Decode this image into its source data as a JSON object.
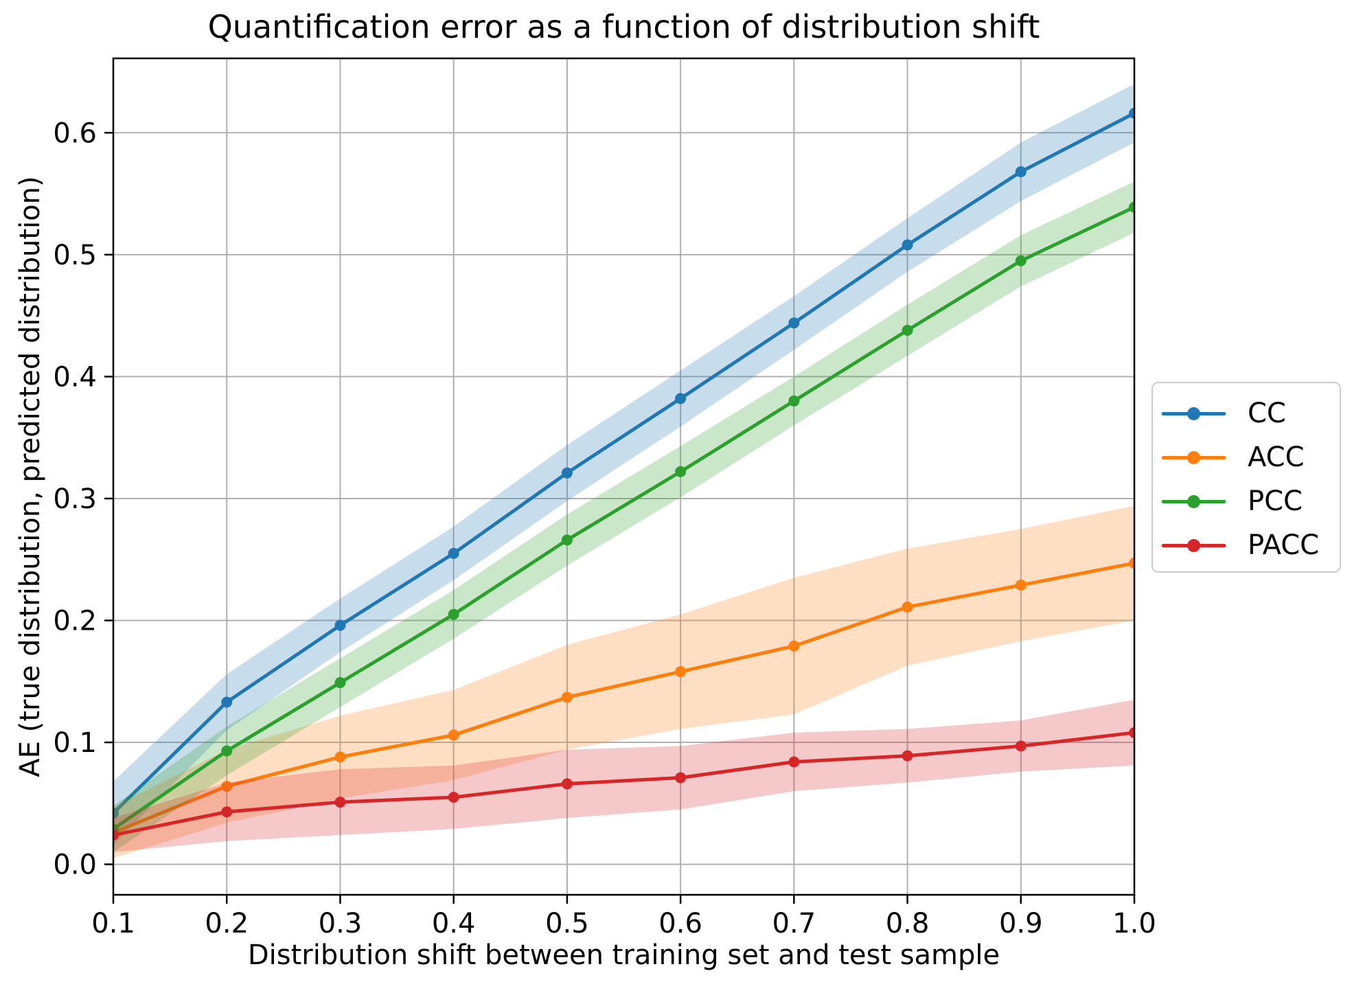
{
  "chart_data": {
    "type": "line",
    "title": "Quantification error as a function of distribution shift",
    "xlabel": "Distribution shift between training set and test sample",
    "ylabel": "AE (true distribution, predicted distribution)",
    "x": [
      0.1,
      0.2,
      0.3,
      0.4,
      0.5,
      0.6,
      0.7,
      0.8,
      0.9,
      1.0
    ],
    "xlim": [
      0.1,
      1.0
    ],
    "ylim": [
      -0.025,
      0.661
    ],
    "xticks": [
      0.1,
      0.2,
      0.3,
      0.4,
      0.5,
      0.6,
      0.7,
      0.8,
      0.9,
      1.0
    ],
    "yticks": [
      0.0,
      0.1,
      0.2,
      0.3,
      0.4,
      0.5,
      0.6
    ],
    "xtick_labels": [
      "0.1",
      "0.2",
      "0.3",
      "0.4",
      "0.5",
      "0.6",
      "0.7",
      "0.8",
      "0.9",
      "1.0"
    ],
    "ytick_labels": [
      "0.0",
      "0.1",
      "0.2",
      "0.3",
      "0.4",
      "0.5",
      "0.6"
    ],
    "grid": true,
    "grid_color": "#b0b0b0",
    "spine_color": "#000000",
    "background": "#ffffff",
    "band_alpha": 0.25,
    "legend_position": "outside-right",
    "legend_border_color": "#cccccc",
    "series": [
      {
        "name": "CC",
        "color": "#1f77b4",
        "values": [
          0.042,
          0.133,
          0.196,
          0.255,
          0.321,
          0.382,
          0.444,
          0.508,
          0.568,
          0.616
        ],
        "band_halfwidth": [
          0.026,
          0.023,
          0.022,
          0.022,
          0.023,
          0.023,
          0.022,
          0.022,
          0.024,
          0.024
        ]
      },
      {
        "name": "ACC",
        "color": "#ff7f0e",
        "values": [
          0.026,
          0.064,
          0.088,
          0.106,
          0.137,
          0.158,
          0.179,
          0.211,
          0.229,
          0.247
        ],
        "band_halfwidth": [
          0.021,
          0.03,
          0.034,
          0.037,
          0.043,
          0.047,
          0.056,
          0.048,
          0.046,
          0.047
        ]
      },
      {
        "name": "PCC",
        "color": "#2ca02c",
        "values": [
          0.029,
          0.093,
          0.149,
          0.205,
          0.266,
          0.322,
          0.38,
          0.438,
          0.495,
          0.539
        ],
        "band_halfwidth": [
          0.019,
          0.02,
          0.02,
          0.02,
          0.021,
          0.021,
          0.02,
          0.021,
          0.021,
          0.021
        ]
      },
      {
        "name": "PACC",
        "color": "#d62728",
        "values": [
          0.024,
          0.043,
          0.051,
          0.055,
          0.066,
          0.071,
          0.084,
          0.089,
          0.097,
          0.108
        ],
        "band_halfwidth": [
          0.014,
          0.024,
          0.027,
          0.026,
          0.028,
          0.026,
          0.024,
          0.022,
          0.021,
          0.027
        ]
      }
    ]
  }
}
